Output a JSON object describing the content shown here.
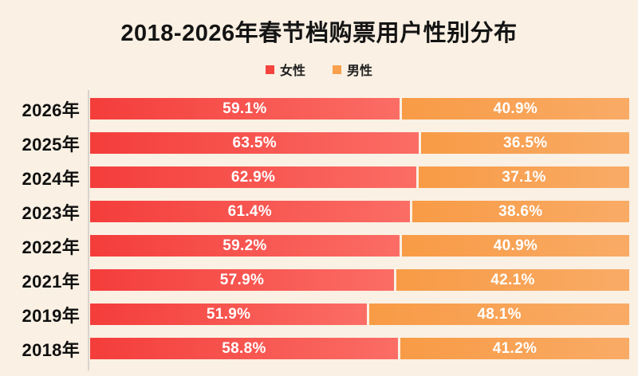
{
  "page": {
    "background": "#FAF0E3"
  },
  "title": "2018-2026年春节档购票用户性别分布",
  "legend": [
    {
      "label": "女性",
      "color": "#F4443E"
    },
    {
      "label": "男性",
      "color": "#F9A04F"
    }
  ],
  "chart_data": {
    "type": "bar",
    "orientation": "horizontal-stacked",
    "title": "2018-2026年春节档购票用户性别分布",
    "categories": [
      "2026年",
      "2025年",
      "2024年",
      "2023年",
      "2022年",
      "2021年",
      "2019年",
      "2018年"
    ],
    "series": [
      {
        "name": "女性",
        "values": [
          59.1,
          63.5,
          62.9,
          61.4,
          59.2,
          57.9,
          51.9,
          58.8
        ],
        "color_start": "#F43D3B",
        "color_end": "#FB6D65"
      },
      {
        "name": "男性",
        "values": [
          40.9,
          36.5,
          37.1,
          38.6,
          40.9,
          42.1,
          48.1,
          41.2
        ],
        "color_start": "#F89B46",
        "color_end": "#F9AB66"
      }
    ],
    "value_suffix": "%",
    "xlim": [
      0,
      100
    ],
    "legend_position": "top",
    "grid": false
  }
}
